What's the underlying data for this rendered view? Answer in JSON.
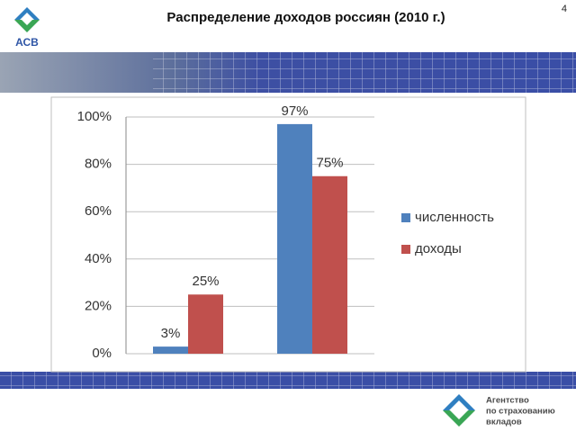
{
  "slide": {
    "title": "Распределение доходов россиян (2010 г.)",
    "page_number": "4",
    "logo_text": "АСВ",
    "footer_lines": [
      "Агентство",
      "по страхованию",
      "вкладов"
    ]
  },
  "chart_data": {
    "type": "bar",
    "categories": [
      null,
      null
    ],
    "series": [
      {
        "name": "численность",
        "color": "#4f81bd",
        "values": [
          3,
          97
        ],
        "value_labels": [
          "3%",
          "97%"
        ]
      },
      {
        "name": "доходы",
        "color": "#c0504d",
        "values": [
          25,
          75
        ],
        "value_labels": [
          "25%",
          "75%"
        ]
      }
    ],
    "ylim": [
      0,
      100
    ],
    "yticks": [
      {
        "value": 0,
        "label": "0%"
      },
      {
        "value": 20,
        "label": "20%"
      },
      {
        "value": 40,
        "label": "40%"
      },
      {
        "value": 60,
        "label": "60%"
      },
      {
        "value": 80,
        "label": "80%"
      },
      {
        "value": 100,
        "label": "100%"
      }
    ],
    "grid": true,
    "legend": "right"
  }
}
